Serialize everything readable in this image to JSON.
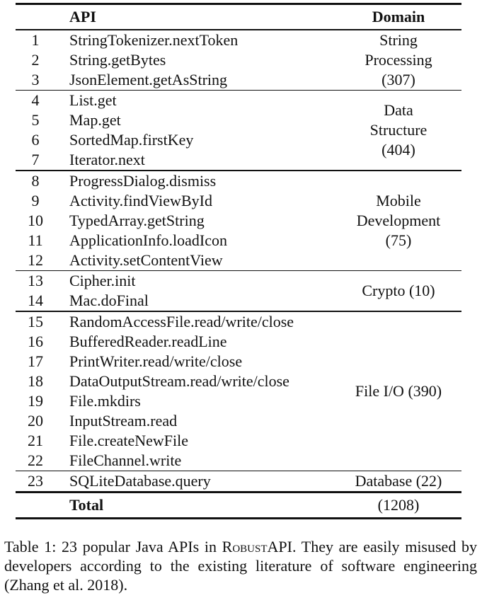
{
  "table": {
    "headers": {
      "num": "",
      "api": "API",
      "domain": "Domain"
    },
    "groups": [
      {
        "domain": "String\nProcessing\n(307)",
        "rows": [
          {
            "num": "1",
            "api": "StringTokenizer.nextToken"
          },
          {
            "num": "2",
            "api": "String.getBytes"
          },
          {
            "num": "3",
            "api": "JsonElement.getAsString"
          }
        ]
      },
      {
        "domain": "Data\nStructure\n(404)",
        "rows": [
          {
            "num": "4",
            "api": "List.get"
          },
          {
            "num": "5",
            "api": "Map.get"
          },
          {
            "num": "6",
            "api": "SortedMap.firstKey"
          },
          {
            "num": "7",
            "api": "Iterator.next"
          }
        ]
      },
      {
        "domain": "Mobile\nDevelopment\n(75)",
        "rows": [
          {
            "num": "8",
            "api": "ProgressDialog.dismiss"
          },
          {
            "num": "9",
            "api": "Activity.findViewById"
          },
          {
            "num": "10",
            "api": "TypedArray.getString"
          },
          {
            "num": "11",
            "api": "ApplicationInfo.loadIcon"
          },
          {
            "num": "12",
            "api": "Activity.setContentView"
          }
        ]
      },
      {
        "domain": "Crypto (10)",
        "rows": [
          {
            "num": "13",
            "api": "Cipher.init"
          },
          {
            "num": "14",
            "api": "Mac.doFinal"
          }
        ]
      },
      {
        "domain": "File I/O (390)",
        "rows": [
          {
            "num": "15",
            "api": "RandomAccessFile.read/write/close"
          },
          {
            "num": "16",
            "api": "BufferedReader.readLine"
          },
          {
            "num": "17",
            "api": "PrintWriter.read/write/close"
          },
          {
            "num": "18",
            "api": "DataOutputStream.read/write/close"
          },
          {
            "num": "19",
            "api": "File.mkdirs"
          },
          {
            "num": "20",
            "api": "InputStream.read"
          },
          {
            "num": "21",
            "api": "File.createNewFile"
          },
          {
            "num": "22",
            "api": "FileChannel.write"
          }
        ]
      },
      {
        "domain": "Database (22)",
        "rows": [
          {
            "num": "23",
            "api": "SQLiteDatabase.query"
          }
        ]
      }
    ],
    "total": {
      "label": "Total",
      "value": "(1208)"
    }
  },
  "caption": {
    "prefix": "Table 1: 23 popular Java APIs in ",
    "system_name": "RobustAPI",
    "suffix": ". They are easily misused by developers according to the existing literature of software engineering (Zhang et al. 2018)."
  }
}
